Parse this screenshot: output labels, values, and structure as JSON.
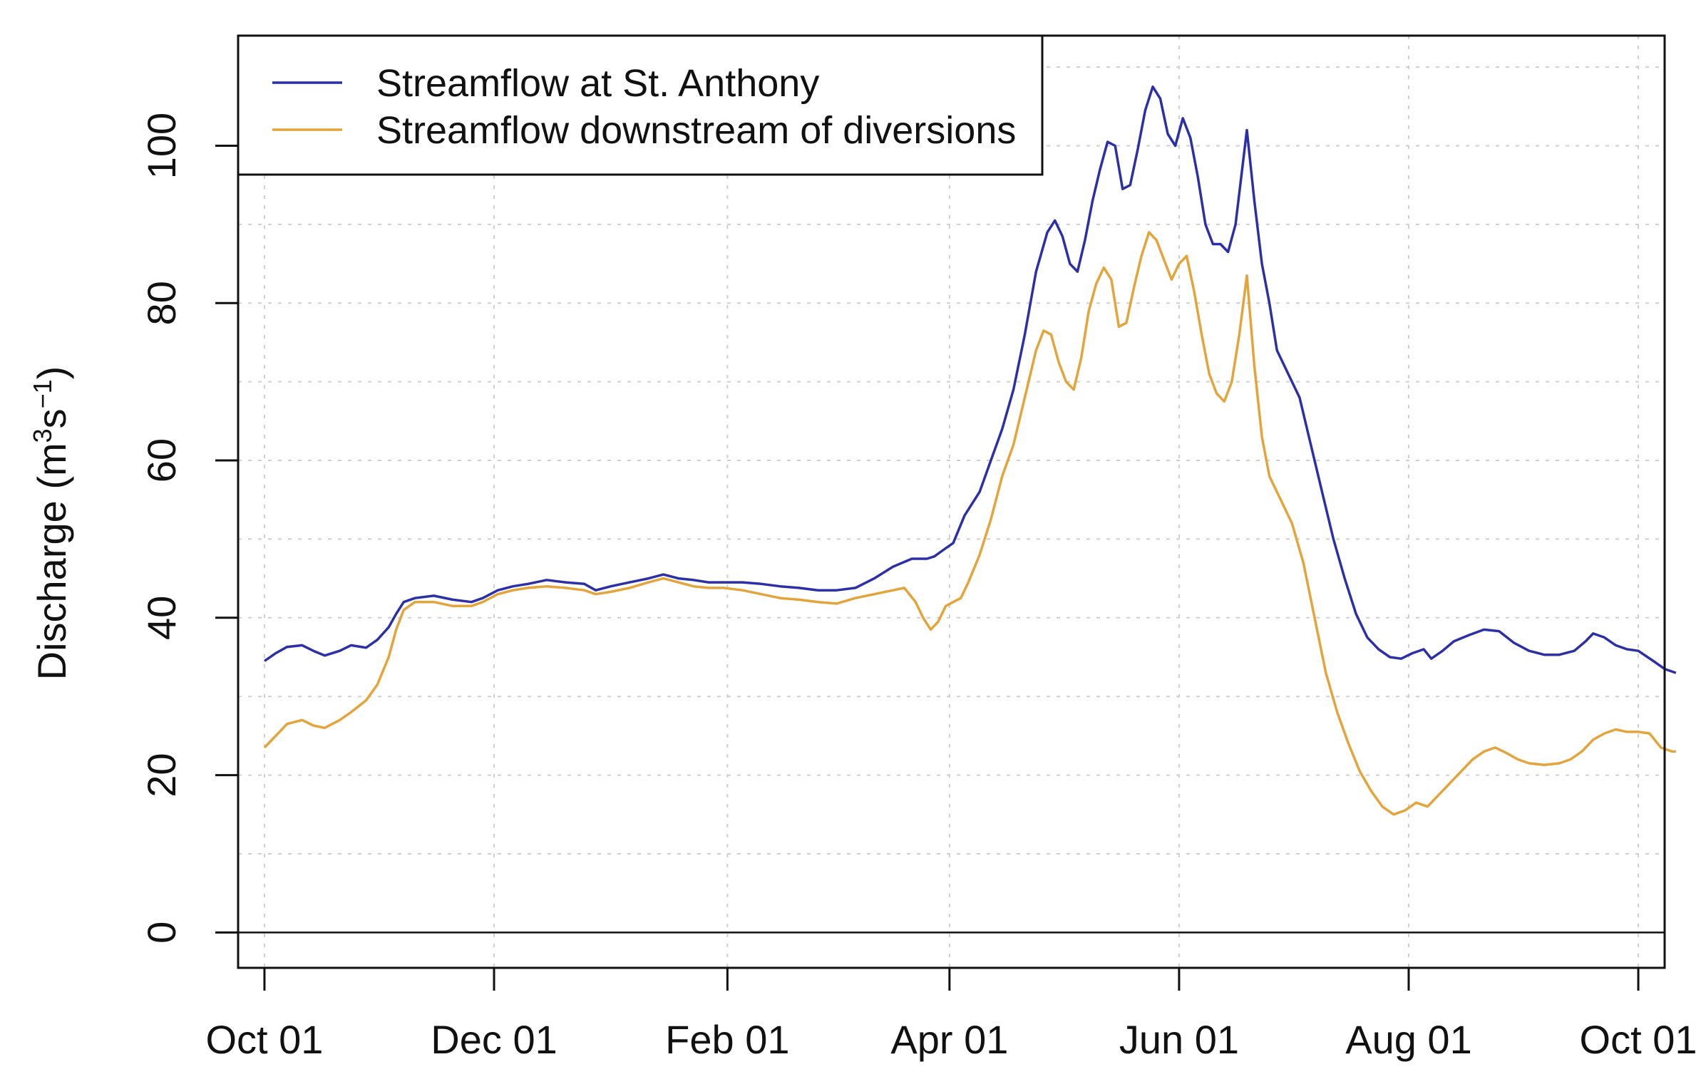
{
  "chart_data": {
    "type": "line",
    "title": "",
    "xlabel": "",
    "ylabel": "Discharge (m³s⁻¹)",
    "ylabel_parts": {
      "base": "Discharge (m",
      "sup1": "3",
      "mid": "s",
      "sup2": "−1",
      "end": ")"
    },
    "ylim": [
      -4.5,
      114
    ],
    "xlim": [
      -7,
      372
    ],
    "grid": true,
    "legend_position": "top-left",
    "x_ticks": [
      {
        "day": 0,
        "label": "Oct 01"
      },
      {
        "day": 61,
        "label": "Dec 01"
      },
      {
        "day": 123,
        "label": "Feb 01"
      },
      {
        "day": 182,
        "label": "Apr 01"
      },
      {
        "day": 243,
        "label": "Jun 01"
      },
      {
        "day": 304,
        "label": "Aug 01"
      },
      {
        "day": 365,
        "label": "Oct 01"
      }
    ],
    "y_ticks": [
      0,
      20,
      40,
      60,
      80,
      100
    ],
    "reference_line_y": 0,
    "series": [
      {
        "name": "Streamflow at St. Anthony",
        "color": "#2b2fa8",
        "points": [
          [
            0,
            34.5
          ],
          [
            3,
            35.5
          ],
          [
            6,
            36.3
          ],
          [
            10,
            36.5
          ],
          [
            13,
            35.8
          ],
          [
            16,
            35.2
          ],
          [
            20,
            35.8
          ],
          [
            23,
            36.5
          ],
          [
            27,
            36.2
          ],
          [
            30,
            37.2
          ],
          [
            33,
            38.8
          ],
          [
            35,
            40.5
          ],
          [
            37,
            42.0
          ],
          [
            40,
            42.5
          ],
          [
            45,
            42.8
          ],
          [
            50,
            42.3
          ],
          [
            55,
            42.0
          ],
          [
            58,
            42.5
          ],
          [
            62,
            43.5
          ],
          [
            66,
            44.0
          ],
          [
            70,
            44.3
          ],
          [
            75,
            44.8
          ],
          [
            80,
            44.5
          ],
          [
            85,
            44.3
          ],
          [
            88,
            43.5
          ],
          [
            92,
            44.0
          ],
          [
            97,
            44.5
          ],
          [
            102,
            45.0
          ],
          [
            106,
            45.5
          ],
          [
            110,
            45.0
          ],
          [
            114,
            44.8
          ],
          [
            118,
            44.5
          ],
          [
            122,
            44.5
          ],
          [
            127,
            44.5
          ],
          [
            132,
            44.3
          ],
          [
            137,
            44.0
          ],
          [
            142,
            43.8
          ],
          [
            147,
            43.5
          ],
          [
            152,
            43.5
          ],
          [
            157,
            43.8
          ],
          [
            162,
            45.0
          ],
          [
            167,
            46.5
          ],
          [
            172,
            47.5
          ],
          [
            176,
            47.5
          ],
          [
            178,
            47.8
          ],
          [
            180,
            48.5
          ],
          [
            183,
            49.5
          ],
          [
            186,
            53.0
          ],
          [
            190,
            56.0
          ],
          [
            193,
            60.0
          ],
          [
            196,
            64.0
          ],
          [
            199,
            69.0
          ],
          [
            202,
            76.0
          ],
          [
            205,
            84.0
          ],
          [
            208,
            89.0
          ],
          [
            210,
            90.5
          ],
          [
            212,
            88.5
          ],
          [
            214,
            85.0
          ],
          [
            216,
            84.0
          ],
          [
            218,
            88.0
          ],
          [
            220,
            93.0
          ],
          [
            222,
            97.0
          ],
          [
            224,
            100.5
          ],
          [
            226,
            100.0
          ],
          [
            228,
            94.5
          ],
          [
            230,
            95.0
          ],
          [
            232,
            99.5
          ],
          [
            234,
            104.5
          ],
          [
            236,
            107.5
          ],
          [
            238,
            106.0
          ],
          [
            240,
            101.5
          ],
          [
            242,
            100.0
          ],
          [
            244,
            103.5
          ],
          [
            246,
            101.0
          ],
          [
            248,
            96.0
          ],
          [
            250,
            90.0
          ],
          [
            252,
            87.5
          ],
          [
            254,
            87.5
          ],
          [
            256,
            86.5
          ],
          [
            258,
            90.0
          ],
          [
            259,
            94.0
          ],
          [
            261,
            102.0
          ],
          [
            263,
            93.0
          ],
          [
            265,
            85.0
          ],
          [
            267,
            80.0
          ],
          [
            269,
            74.0
          ],
          [
            272,
            71.0
          ],
          [
            275,
            68.0
          ],
          [
            278,
            62.0
          ],
          [
            281,
            56.0
          ],
          [
            284,
            50.0
          ],
          [
            287,
            45.0
          ],
          [
            290,
            40.5
          ],
          [
            293,
            37.5
          ],
          [
            296,
            36.0
          ],
          [
            299,
            35.0
          ],
          [
            302,
            34.8
          ],
          [
            305,
            35.5
          ],
          [
            308,
            36.0
          ],
          [
            310,
            34.8
          ],
          [
            313,
            35.8
          ],
          [
            316,
            37.0
          ],
          [
            320,
            37.8
          ],
          [
            324,
            38.5
          ],
          [
            328,
            38.3
          ],
          [
            332,
            36.8
          ],
          [
            336,
            35.8
          ],
          [
            340,
            35.3
          ],
          [
            344,
            35.3
          ],
          [
            348,
            35.8
          ],
          [
            351,
            37.0
          ],
          [
            353,
            38.0
          ],
          [
            356,
            37.5
          ],
          [
            359,
            36.5
          ],
          [
            362,
            36.0
          ],
          [
            365,
            35.8
          ],
          [
            369,
            34.5
          ],
          [
            372,
            33.5
          ],
          [
            375,
            33.0
          ]
        ]
      },
      {
        "name": "Streamflow downstream of diversions",
        "color": "#e5a43a",
        "points": [
          [
            0,
            23.5
          ],
          [
            3,
            25.0
          ],
          [
            6,
            26.5
          ],
          [
            10,
            27.0
          ],
          [
            13,
            26.3
          ],
          [
            16,
            26.0
          ],
          [
            20,
            27.0
          ],
          [
            23,
            28.0
          ],
          [
            27,
            29.5
          ],
          [
            30,
            31.5
          ],
          [
            33,
            35.0
          ],
          [
            35,
            38.5
          ],
          [
            37,
            41.0
          ],
          [
            40,
            42.0
          ],
          [
            45,
            42.0
          ],
          [
            50,
            41.5
          ],
          [
            55,
            41.5
          ],
          [
            58,
            42.0
          ],
          [
            62,
            43.0
          ],
          [
            66,
            43.5
          ],
          [
            70,
            43.8
          ],
          [
            75,
            44.0
          ],
          [
            80,
            43.8
          ],
          [
            85,
            43.5
          ],
          [
            88,
            43.0
          ],
          [
            92,
            43.3
          ],
          [
            97,
            43.8
          ],
          [
            102,
            44.5
          ],
          [
            106,
            45.0
          ],
          [
            110,
            44.5
          ],
          [
            114,
            44.0
          ],
          [
            118,
            43.8
          ],
          [
            122,
            43.8
          ],
          [
            127,
            43.5
          ],
          [
            132,
            43.0
          ],
          [
            137,
            42.5
          ],
          [
            142,
            42.3
          ],
          [
            147,
            42.0
          ],
          [
            152,
            41.8
          ],
          [
            157,
            42.5
          ],
          [
            162,
            43.0
          ],
          [
            167,
            43.5
          ],
          [
            170,
            43.8
          ],
          [
            173,
            42.0
          ],
          [
            175,
            40.0
          ],
          [
            177,
            38.5
          ],
          [
            179,
            39.5
          ],
          [
            181,
            41.5
          ],
          [
            183,
            42.0
          ],
          [
            185,
            42.5
          ],
          [
            187,
            44.5
          ],
          [
            190,
            48.0
          ],
          [
            193,
            52.5
          ],
          [
            196,
            58.0
          ],
          [
            199,
            62.0
          ],
          [
            202,
            68.0
          ],
          [
            205,
            74.0
          ],
          [
            207,
            76.5
          ],
          [
            209,
            76.0
          ],
          [
            211,
            72.5
          ],
          [
            213,
            70.0
          ],
          [
            215,
            69.0
          ],
          [
            217,
            73.0
          ],
          [
            219,
            79.0
          ],
          [
            221,
            82.5
          ],
          [
            223,
            84.5
          ],
          [
            225,
            83.0
          ],
          [
            227,
            77.0
          ],
          [
            229,
            77.5
          ],
          [
            231,
            82.0
          ],
          [
            233,
            86.0
          ],
          [
            235,
            89.0
          ],
          [
            237,
            88.0
          ],
          [
            239,
            85.5
          ],
          [
            241,
            83.0
          ],
          [
            243,
            85.0
          ],
          [
            245,
            86.0
          ],
          [
            247,
            81.5
          ],
          [
            249,
            76.0
          ],
          [
            251,
            71.0
          ],
          [
            253,
            68.5
          ],
          [
            255,
            67.5
          ],
          [
            257,
            70.0
          ],
          [
            259,
            76.0
          ],
          [
            261,
            83.5
          ],
          [
            263,
            72.0
          ],
          [
            265,
            63.0
          ],
          [
            267,
            58.0
          ],
          [
            270,
            55.0
          ],
          [
            273,
            52.0
          ],
          [
            276,
            47.0
          ],
          [
            279,
            40.0
          ],
          [
            282,
            33.0
          ],
          [
            285,
            28.0
          ],
          [
            288,
            24.0
          ],
          [
            291,
            20.5
          ],
          [
            294,
            18.0
          ],
          [
            297,
            16.0
          ],
          [
            300,
            15.0
          ],
          [
            303,
            15.5
          ],
          [
            306,
            16.5
          ],
          [
            309,
            16.0
          ],
          [
            312,
            17.5
          ],
          [
            315,
            19.0
          ],
          [
            318,
            20.5
          ],
          [
            321,
            22.0
          ],
          [
            324,
            23.0
          ],
          [
            327,
            23.5
          ],
          [
            330,
            22.8
          ],
          [
            333,
            22.0
          ],
          [
            336,
            21.5
          ],
          [
            340,
            21.3
          ],
          [
            344,
            21.5
          ],
          [
            347,
            22.0
          ],
          [
            350,
            23.0
          ],
          [
            353,
            24.5
          ],
          [
            356,
            25.3
          ],
          [
            359,
            25.8
          ],
          [
            362,
            25.5
          ],
          [
            365,
            25.5
          ],
          [
            368,
            25.3
          ],
          [
            371,
            23.5
          ],
          [
            374,
            23.0
          ],
          [
            375,
            23.0
          ]
        ]
      }
    ]
  }
}
